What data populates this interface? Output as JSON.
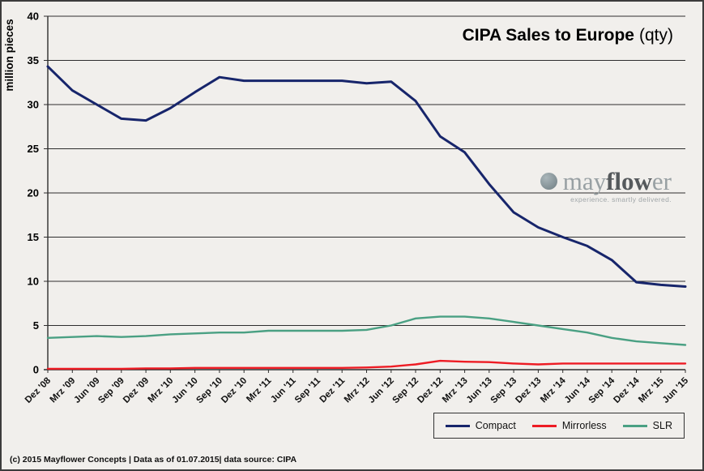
{
  "page": {
    "background": "#f1efec",
    "border_color": "#3c3c3c",
    "grid_color": "#2e2e2e"
  },
  "title": {
    "main": "CIPA Sales to Europe",
    "suffix": "(qty)"
  },
  "y_axis_label": "million pieces",
  "logo": {
    "text_light1": "may",
    "text_bold": "flow",
    "text_light2": "er",
    "tagline": "experience. smartly delivered."
  },
  "footer": "(c) 2015 Mayflower Concepts | Data as of 01.07.2015| data source: CIPA",
  "chart_data": {
    "type": "line",
    "title": "CIPA Sales to Europe (qty)",
    "ylabel": "million pieces",
    "xlabel": "",
    "ylim": [
      0,
      40
    ],
    "ytick_step": 5,
    "grid": true,
    "legend_position": "bottom-right",
    "categories": [
      "Dez '08",
      "Mrz '09",
      "Jun '09",
      "Sep '09",
      "Dez '09",
      "Mrz '10",
      "Jun '10",
      "Sep '10",
      "Dez '10",
      "Mrz '11",
      "Jun '11",
      "Sep '11",
      "Dez '11",
      "Mrz '12",
      "Jun '12",
      "Sep '12",
      "Dez '12",
      "Mrz '13",
      "Jun '13",
      "Sep '13",
      "Dez '13",
      "Mrz '14",
      "Jun '14",
      "Sep '14",
      "Dez '14",
      "Mrz '15",
      "Jun '15"
    ],
    "series": [
      {
        "name": "Compact",
        "color": "#17256b",
        "values": [
          34.3,
          31.6,
          30.0,
          28.4,
          28.2,
          29.6,
          31.4,
          33.1,
          32.7,
          32.7,
          32.7,
          32.7,
          32.7,
          32.4,
          32.6,
          30.4,
          26.4,
          24.6,
          21.0,
          17.8,
          16.1,
          15.0,
          14.0,
          12.4,
          9.9,
          9.6,
          9.4
        ]
      },
      {
        "name": "Mirrorless",
        "color": "#ed1c24",
        "values": [
          0.1,
          0.1,
          0.1,
          0.1,
          0.15,
          0.15,
          0.2,
          0.2,
          0.2,
          0.2,
          0.2,
          0.2,
          0.2,
          0.25,
          0.35,
          0.6,
          1.0,
          0.9,
          0.85,
          0.7,
          0.6,
          0.7,
          0.7,
          0.7,
          0.7,
          0.7,
          0.7
        ]
      },
      {
        "name": "SLR",
        "color": "#4aa083",
        "values": [
          3.6,
          3.7,
          3.8,
          3.7,
          3.8,
          4.0,
          4.1,
          4.2,
          4.2,
          4.4,
          4.4,
          4.4,
          4.4,
          4.5,
          5.0,
          5.8,
          6.0,
          6.0,
          5.8,
          5.4,
          5.0,
          4.6,
          4.2,
          3.6,
          3.2,
          3.0,
          2.8
        ]
      }
    ]
  }
}
